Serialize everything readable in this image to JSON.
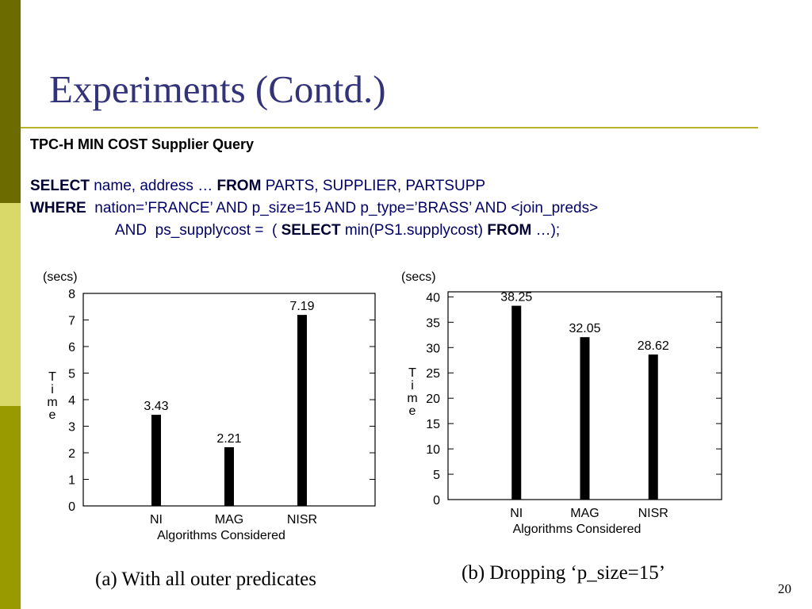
{
  "slide": {
    "title": "Experiments (Contd.)",
    "page_number": "20",
    "accent_color": "#b9b32a",
    "sidebar_colors": [
      "#6b6b00",
      "#d9d96a",
      "#999900"
    ]
  },
  "query": {
    "heading": "TPC-H MIN COST Supplier Query",
    "line1": {
      "kw1": "SELECT",
      "t1": " name, address … ",
      "kw2": "FROM",
      "t2": " PARTS, SUPPLIER, PARTSUPP"
    },
    "line2": {
      "kw1": "WHERE",
      "t1": "  nation=’FRANCE’ AND p_size=15 AND p_type=’BRASS’ AND <join_preds>"
    },
    "line3": {
      "t0": "AND  ps_supplycost =  ( ",
      "kw1": "SELECT",
      "t1": " min(PS1.supplycost) ",
      "kw2": "FROM",
      "t2": " …);"
    }
  },
  "captions": {
    "a": "(a) With all outer predicates",
    "b": "(b) Dropping ‘p_size=15’"
  },
  "chart_data": [
    {
      "type": "bar",
      "categories": [
        "NI",
        "MAG",
        "NISR"
      ],
      "values": [
        3.43,
        2.21,
        7.19
      ],
      "data_labels": [
        "3.43",
        "2.21",
        "7.19"
      ],
      "unit_label": "(secs)",
      "ylabel": "Time",
      "xlabel": "Algorithms Considered",
      "ylim": [
        0,
        8
      ],
      "yticks": [
        0,
        1,
        2,
        3,
        4,
        5,
        6,
        7,
        8
      ],
      "grid": false
    },
    {
      "type": "bar",
      "categories": [
        "NI",
        "MAG",
        "NISR"
      ],
      "values": [
        38.25,
        32.05,
        28.62
      ],
      "data_labels": [
        "38.25",
        "32.05",
        "28.62"
      ],
      "unit_label": "(secs)",
      "ylabel": "Time",
      "xlabel": "Algorithms Considered",
      "ylim": [
        0,
        41
      ],
      "yticks": [
        0,
        5,
        10,
        15,
        20,
        25,
        30,
        35,
        40
      ],
      "grid": false
    }
  ]
}
